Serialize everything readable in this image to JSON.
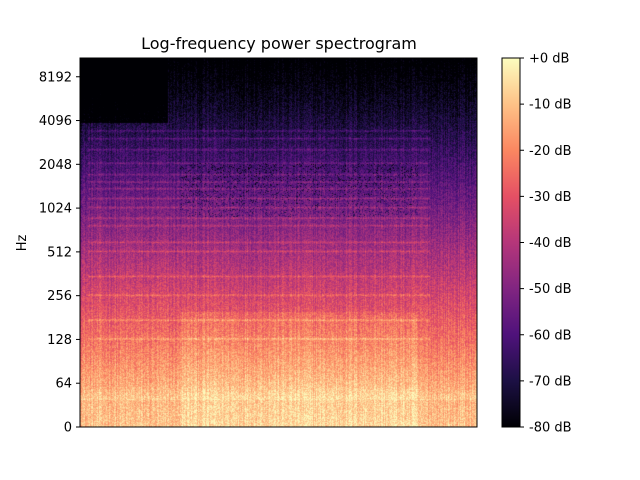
{
  "chart_data": {
    "type": "heatmap",
    "title": "Log-frequency power spectrogram",
    "xlabel": "",
    "ylabel": "Hz",
    "y_scale": "log2",
    "y_ticks": [
      0,
      64,
      128,
      256,
      512,
      1024,
      2048,
      4096,
      8192
    ],
    "y_tick_labels": [
      "0",
      "64",
      "128",
      "256",
      "512",
      "1024",
      "2048",
      "4096",
      "8192"
    ],
    "x_ticks": [],
    "color_scale": "magma",
    "colorbar": {
      "ticks": [
        0,
        -10,
        -20,
        -30,
        -40,
        -50,
        -60,
        -70,
        -80
      ],
      "tick_labels": [
        "+0 dB",
        "-10 dB",
        "-20 dB",
        "-30 dB",
        "-40 dB",
        "-50 dB",
        "-60 dB",
        "-70 dB",
        "-80 dB"
      ],
      "range": [
        -80,
        0
      ]
    },
    "z_unit": "dB",
    "z_range": [
      -80,
      0
    ],
    "harmonic_bands_hz": [
      130,
      175,
      260,
      350,
      520,
      600,
      780,
      880,
      1040,
      1200,
      1400,
      1560,
      1750,
      2100,
      2600,
      3100,
      3500
    ],
    "colors": {
      "magma": [
        "#000004",
        "#1c1044",
        "#4f127b",
        "#812581",
        "#b5367a",
        "#e55064",
        "#fb8761",
        "#fec287",
        "#fcfdbf"
      ]
    }
  }
}
